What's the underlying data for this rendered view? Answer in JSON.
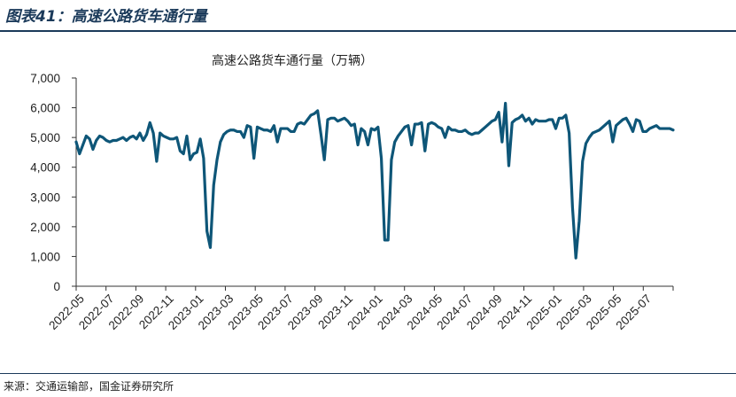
{
  "figure": {
    "title": "图表41：高速公路货车通行量",
    "source": "来源：交通运输部，国金证券研究所"
  },
  "colors": {
    "line": "#0e5678",
    "rule": "#1b3a5a"
  },
  "chart_data": {
    "type": "line",
    "title": "高速公路货车通行量（万辆）",
    "xlabel": "",
    "ylabel": "",
    "ylim": [
      0,
      7000
    ],
    "yticks": [
      "0",
      "1,000",
      "2,000",
      "3,000",
      "4,000",
      "5,000",
      "6,000",
      "7,000"
    ],
    "xticks": [
      "2022-05",
      "2022-07",
      "2022-09",
      "2022-11",
      "2023-01",
      "2023-03",
      "2023-05",
      "2023-07",
      "2023-09",
      "2023-11",
      "2024-01",
      "2024-03",
      "2024-05",
      "2024-07",
      "2024-09",
      "2024-11",
      "2025-01",
      "2025-03",
      "2025-05",
      "2025-07"
    ],
    "grid": false,
    "legend": "none",
    "series": [
      {
        "values": [
          4850,
          4450,
          4750,
          5050,
          4950,
          4600,
          4900,
          5050,
          5000,
          4900,
          4850,
          4900,
          4900,
          4950,
          5000,
          4900,
          5000,
          5050,
          4950,
          5150,
          4900,
          5100,
          5500,
          5150,
          4200,
          5150,
          5050,
          5000,
          4950,
          4950,
          5000,
          4550,
          4450,
          5050,
          4250,
          4450,
          4500,
          4950,
          4300,
          1850,
          1300,
          3400,
          4250,
          4850,
          5100,
          5200,
          5250,
          5250,
          5200,
          5200,
          5000,
          5400,
          5350,
          4300,
          5350,
          5300,
          5250,
          5250,
          5200,
          5400,
          4850,
          5300,
          5300,
          5300,
          5200,
          5200,
          5450,
          5500,
          5450,
          5600,
          5750,
          5800,
          5900,
          5100,
          4250,
          5600,
          5650,
          5650,
          5550,
          5600,
          5650,
          5550,
          5400,
          5450,
          4750,
          5300,
          5200,
          4750,
          5300,
          5250,
          5350,
          4300,
          1550,
          1550,
          4250,
          4850,
          5050,
          5200,
          5350,
          5400,
          4750,
          5450,
          5450,
          5500,
          4550,
          5450,
          5500,
          5450,
          5350,
          5300,
          5000,
          5350,
          5250,
          5250,
          5200,
          5200,
          5250,
          5150,
          5100,
          5150,
          5150,
          5250,
          5350,
          5450,
          5550,
          5600,
          5850,
          4850,
          6150,
          4050,
          5500,
          5600,
          5650,
          5750,
          5550,
          5650,
          5450,
          5600,
          5550,
          5550,
          5550,
          5600,
          5600,
          5300,
          5650,
          5650,
          5750,
          5150,
          2650,
          950,
          2200,
          4200,
          4800,
          5000,
          5150,
          5200,
          5250,
          5350,
          5450,
          5550,
          4850,
          5400,
          5500,
          5600,
          5650,
          5450,
          5200,
          5600,
          5550,
          5200,
          5200,
          5300,
          5350,
          5400,
          5300,
          5300,
          5300,
          5300,
          5250
        ]
      }
    ]
  }
}
